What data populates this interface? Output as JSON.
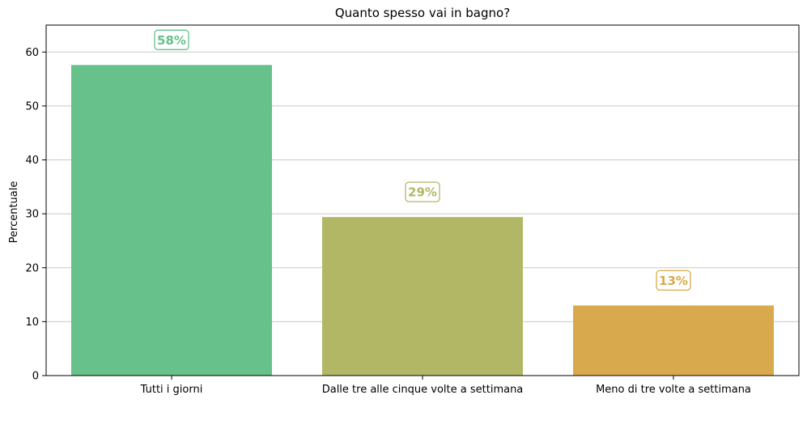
{
  "chart_data": {
    "type": "bar",
    "title": "Quanto spesso vai in bagno?",
    "xlabel": "",
    "ylabel": "Percentuale",
    "categories": [
      "Tutti i giorni",
      "Dalle tre alle cinque volte a settimana",
      "Meno di tre volte a settimana"
    ],
    "values": [
      57.6,
      29.4,
      13.0
    ],
    "data_labels": [
      "58%",
      "29%",
      "13%"
    ],
    "colors": [
      "#66c18a",
      "#b2b766",
      "#d9aa4d"
    ],
    "ylim": [
      0,
      65
    ],
    "yticks": [
      0,
      10,
      20,
      30,
      40,
      50,
      60
    ],
    "grid": "horizontal"
  }
}
